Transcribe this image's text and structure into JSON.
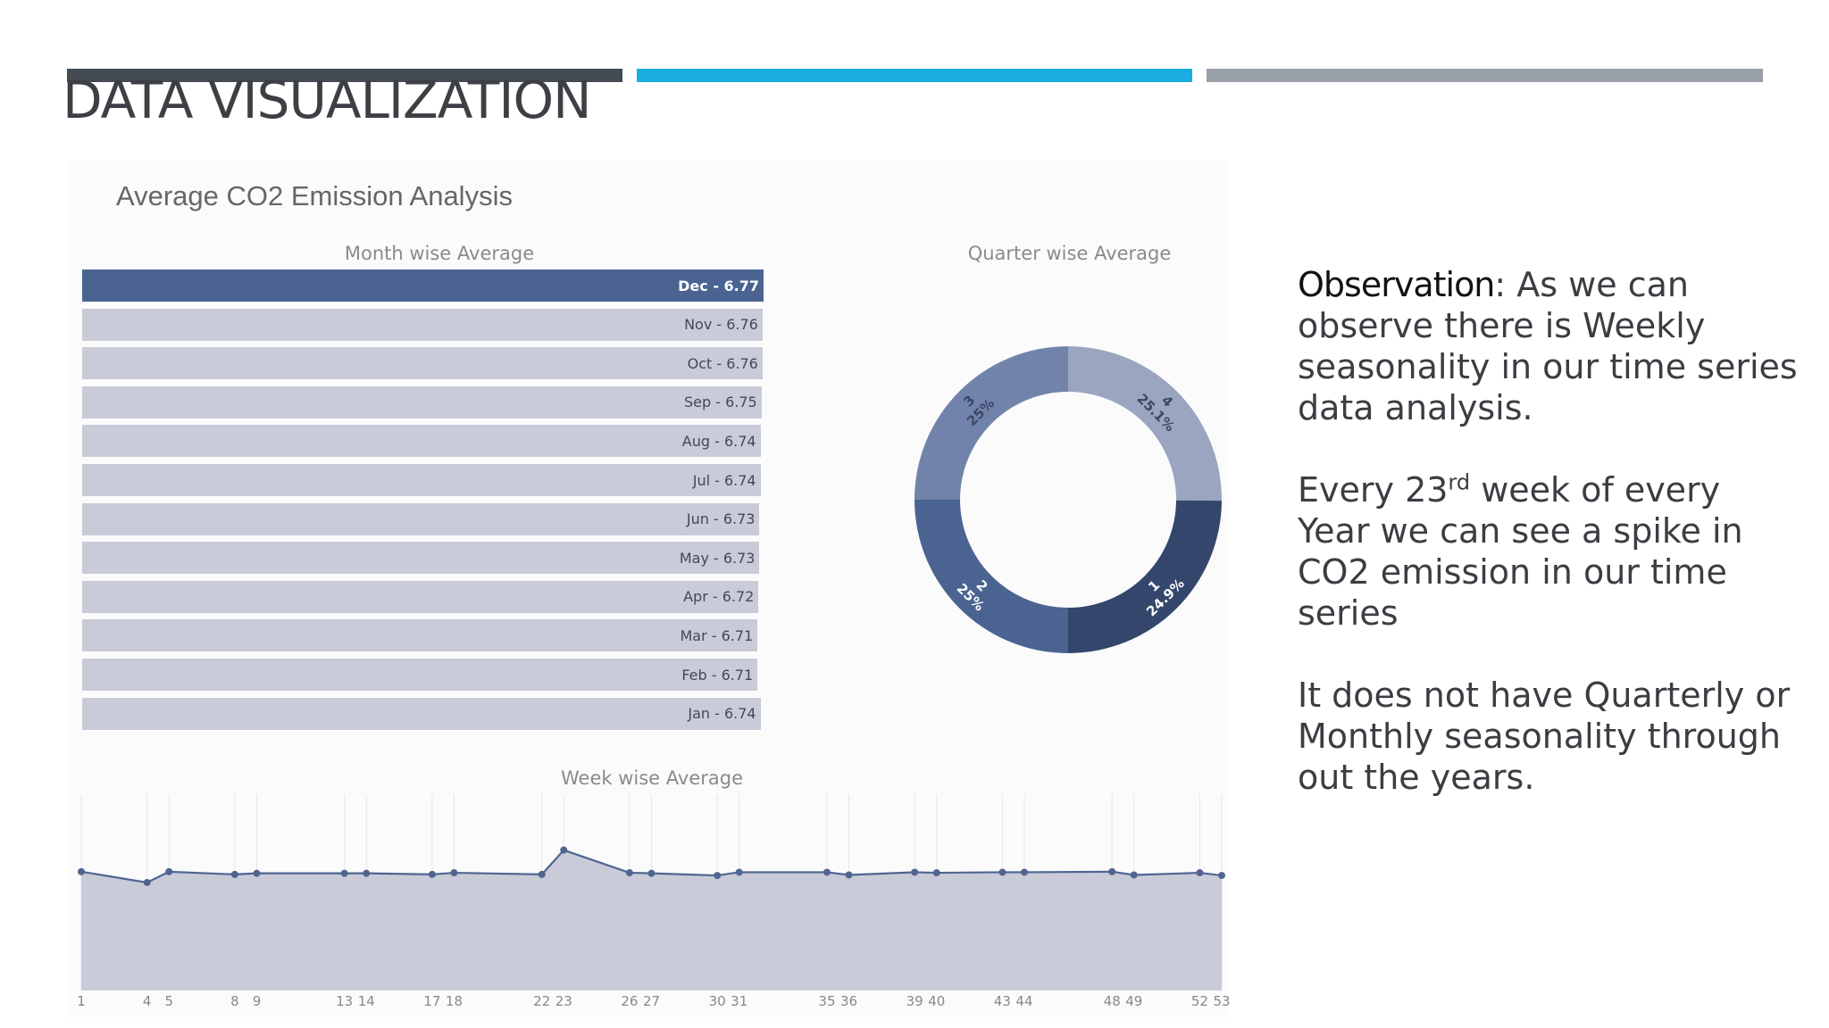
{
  "slide": {
    "title": "DATA VISUALIZATION"
  },
  "colors": {
    "accent_dark": "#454b52",
    "accent_blue": "#1aade0",
    "accent_gray": "#989fa8"
  },
  "dashboard_title": "Average CO2 Emission Analysis",
  "observation": {
    "lead": "Observation",
    "p1_rest": ": As we can observe there is Weekly seasonality in our time series data analysis.",
    "p2_before": "Every 23",
    "p2_sup": "rd",
    "p2_after": " week of every Year we can see a spike in CO2 emission in our time series",
    "p3": "It does not have Quarterly or Monthly seasonality  through out the years."
  },
  "chart_data": [
    {
      "type": "bar",
      "orientation": "horizontal",
      "title": "Month wise Average",
      "categories": [
        "Dec",
        "Nov",
        "Oct",
        "Sep",
        "Aug",
        "Jul",
        "Jun",
        "May",
        "Apr",
        "Mar",
        "Feb",
        "Jan"
      ],
      "values": [
        6.77,
        6.76,
        6.76,
        6.75,
        6.74,
        6.74,
        6.73,
        6.73,
        6.72,
        6.71,
        6.71,
        6.74
      ],
      "labels": [
        "Dec - 6.77",
        "Nov - 6.76",
        "Oct - 6.76",
        "Sep - 6.75",
        "Aug - 6.74",
        "Jul - 6.74",
        "Jun - 6.73",
        "May - 6.73",
        "Apr - 6.72",
        "Mar - 6.71",
        "Feb - 6.71",
        "Jan - 6.74"
      ],
      "colors": {
        "highlight": "#4a6391",
        "normal": "#c9cbd8"
      }
    },
    {
      "type": "pie",
      "variant": "donut",
      "title": "Quarter wise Average",
      "slices": [
        {
          "name": "1",
          "value": 24.9,
          "label": "24.9%",
          "color": "#34466b"
        },
        {
          "name": "2",
          "value": 25.0,
          "label": "25%",
          "color": "#4a6391"
        },
        {
          "name": "3",
          "value": 25.0,
          "label": "25%",
          "color": "#7283ab"
        },
        {
          "name": "4",
          "value": 25.1,
          "label": "25.1%",
          "color": "#9aa5c0"
        }
      ]
    },
    {
      "type": "area",
      "title": "Week wise Average",
      "xlim": [
        1,
        53
      ],
      "ylim": [
        6.5,
        6.88
      ],
      "x": [
        1,
        4,
        5,
        8,
        9,
        13,
        14,
        17,
        18,
        22,
        23,
        26,
        27,
        30,
        31,
        35,
        36,
        39,
        40,
        43,
        44,
        48,
        49,
        52,
        53
      ],
      "values": [
        6.72,
        6.7,
        6.72,
        6.715,
        6.717,
        6.717,
        6.717,
        6.715,
        6.718,
        6.715,
        6.76,
        6.718,
        6.717,
        6.713,
        6.719,
        6.719,
        6.714,
        6.719,
        6.718,
        6.719,
        6.719,
        6.72,
        6.714,
        6.718,
        6.713
      ],
      "tick_labels": [
        "1",
        "4",
        "5",
        "8",
        "9",
        "13",
        "14",
        "17",
        "18",
        "22",
        "23",
        "26",
        "27",
        "30",
        "31",
        "35",
        "36",
        "39",
        "40",
        "43",
        "44",
        "48",
        "49",
        "52",
        "53"
      ],
      "colors": {
        "fill": "#c9cbd8",
        "line": "#4f6591",
        "grid": "#e6e6ea",
        "tick": "#888888"
      }
    }
  ]
}
